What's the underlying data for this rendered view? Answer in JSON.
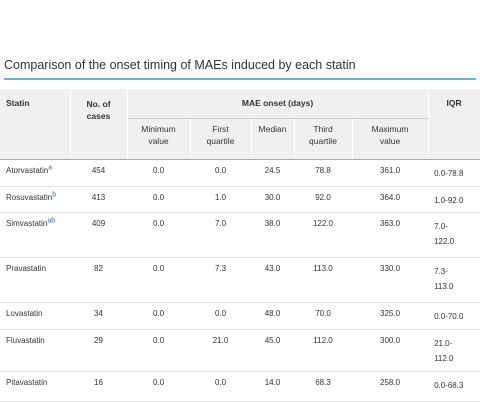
{
  "caption": "Comparison of the onset timing of MAEs induced by each statin",
  "header": {
    "statin": "Statin",
    "cases_line1": "No. of",
    "cases_line2": "cases",
    "group": "MAE onset (days)",
    "iqr": "IQR",
    "min_line1": "Minimum",
    "min_line2": "value",
    "q1_line1": "First",
    "q1_line2": "quartile",
    "median": "Median",
    "q3_line1": "Third",
    "q3_line2": "quartile",
    "max_line1": "Maximum",
    "max_line2": "value"
  },
  "rows": [
    {
      "statin": "Atorvastatin",
      "note": "a",
      "cases": "454",
      "min": "0.0",
      "q1": "0.0",
      "median": "24.5",
      "q3": "78.8",
      "max": "361.0",
      "iqr_line1": "0.0-78.8",
      "iqr_line2": ""
    },
    {
      "statin": "Rosuvastatin",
      "note": "b",
      "cases": "413",
      "min": "0.0",
      "q1": "1.0",
      "median": "30.0",
      "q3": "92.0",
      "max": "364.0",
      "iqr_line1": "1.0-92.0",
      "iqr_line2": ""
    },
    {
      "statin": "Simvastatin",
      "note": "ab",
      "cases": "409",
      "min": "0.0",
      "q1": "7.0",
      "median": "38.0",
      "q3": "122.0",
      "max": "363.0",
      "iqr_line1": "7.0-",
      "iqr_line2": "122.0"
    },
    {
      "statin": "Pravastatin",
      "note": "",
      "cases": "82",
      "min": "0.0",
      "q1": "7.3",
      "median": "43.0",
      "q3": "113.0",
      "max": "330.0",
      "iqr_line1": "7.3-",
      "iqr_line2": "113.0"
    },
    {
      "statin": "Lovastatin",
      "note": "",
      "cases": "34",
      "min": "0.0",
      "q1": "0.0",
      "median": "48.0",
      "q3": "70.0",
      "max": "325.0",
      "iqr_line1": "0.0-70.0",
      "iqr_line2": ""
    },
    {
      "statin": "Fluvastatin",
      "note": "",
      "cases": "29",
      "min": "0.0",
      "q1": "21.0",
      "median": "45.0",
      "q3": "112.0",
      "max": "300.0",
      "iqr_line1": "21.0-",
      "iqr_line2": "112.0"
    },
    {
      "statin": "Pitavastatin",
      "note": "",
      "cases": "16",
      "min": "0.0",
      "q1": "0.0",
      "median": "14.0",
      "q3": "68.3",
      "max": "258.0",
      "iqr_line1": "0.0-68.3",
      "iqr_line2": ""
    }
  ]
}
